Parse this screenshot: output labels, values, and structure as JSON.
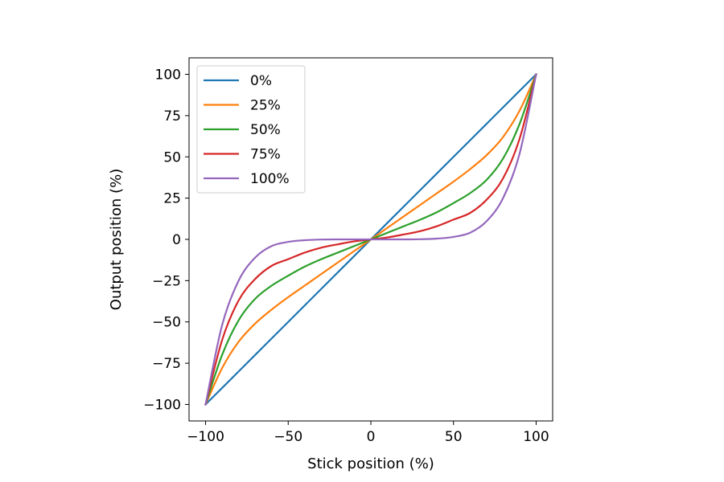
{
  "chart_data": {
    "type": "line",
    "title": "",
    "xlabel": "Stick position (%)",
    "ylabel": "Output position (%)",
    "xlim": [
      -110,
      110
    ],
    "ylim": [
      -110,
      110
    ],
    "xticks": [
      -100,
      -50,
      0,
      50,
      100
    ],
    "xtick_labels": [
      "−100",
      "−50",
      "0",
      "50",
      "100"
    ],
    "yticks": [
      -100,
      -75,
      -50,
      -25,
      0,
      25,
      50,
      75,
      100
    ],
    "ytick_labels": [
      "−100",
      "−75",
      "−50",
      "−25",
      "0",
      "25",
      "50",
      "75",
      "100"
    ],
    "grid": false,
    "legend_position": "upper-left",
    "x": [
      -100,
      -90,
      -80,
      -70,
      -60,
      -50,
      -40,
      -30,
      -20,
      -10,
      0,
      10,
      20,
      30,
      40,
      50,
      60,
      70,
      80,
      90,
      100
    ],
    "series": [
      {
        "name": "0%",
        "color": "#1f77b4",
        "values": [
          -100,
          -90,
          -80,
          -70,
          -60,
          -50,
          -40,
          -30,
          -20,
          -10,
          0,
          10,
          20,
          30,
          40,
          50,
          60,
          70,
          80,
          90,
          100
        ]
      },
      {
        "name": "25%",
        "color": "#ff7f0e",
        "values": [
          -100,
          -78,
          -62,
          -51,
          -42.5,
          -35,
          -28,
          -21,
          -14,
          -7,
          0,
          7,
          14,
          21,
          28,
          35,
          42.5,
          51,
          62,
          78,
          100
        ]
      },
      {
        "name": "50%",
        "color": "#2ca02c",
        "values": [
          -100,
          -70,
          -49,
          -36,
          -28,
          -22,
          -16.5,
          -12,
          -8,
          -4,
          0,
          4,
          8,
          12,
          16.5,
          22,
          28,
          36,
          49,
          70,
          100
        ]
      },
      {
        "name": "75%",
        "color": "#d62728",
        "values": [
          -100,
          -61,
          -37,
          -24,
          -16,
          -12,
          -8,
          -5,
          -3,
          -1.2,
          0,
          1.2,
          3,
          5,
          8,
          12,
          16,
          24,
          37,
          61,
          100
        ]
      },
      {
        "name": "100%",
        "color": "#9467bd",
        "values": [
          -100,
          -52,
          -25,
          -11,
          -4,
          -1.5,
          -0.5,
          -0.1,
          0,
          0,
          0,
          0,
          0,
          0.1,
          0.5,
          1.5,
          4,
          11,
          25,
          52,
          100
        ]
      }
    ]
  }
}
